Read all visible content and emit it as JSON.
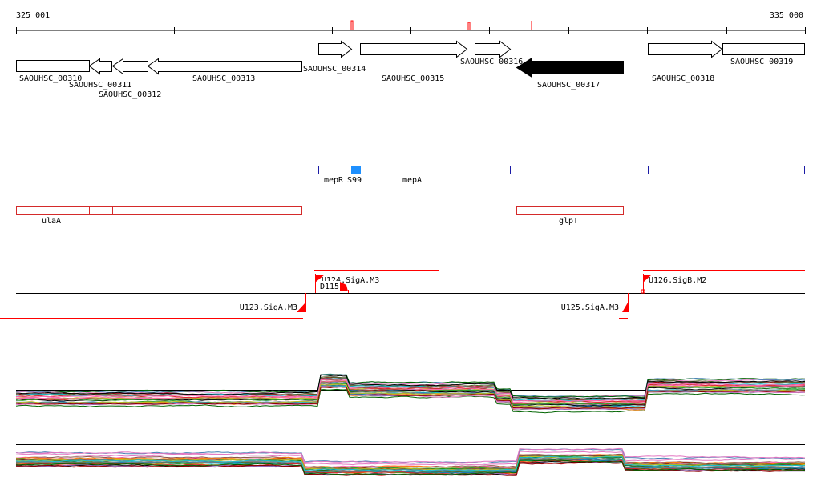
{
  "ruler": {
    "start_label": "325 001",
    "end_label": "335 000",
    "start": 325001,
    "end": 335000
  },
  "genes": [
    {
      "id": "SAOUHSC_00310",
      "label": "SAOUHSC_00310",
      "strand": "+",
      "fill": "white"
    },
    {
      "id": "SAOUHSC_00311",
      "label": "SAOUHSC_00311",
      "strand": "-",
      "fill": "white"
    },
    {
      "id": "SAOUHSC_00312",
      "label": "SAOUHSC_00312",
      "strand": "-",
      "fill": "white"
    },
    {
      "id": "SAOUHSC_00313",
      "label": "SAOUHSC_00313",
      "strand": "-",
      "fill": "white"
    },
    {
      "id": "SAOUHSC_00314",
      "label": "SAOUHSC_00314",
      "strand": "+",
      "fill": "white"
    },
    {
      "id": "SAOUHSC_00315",
      "label": "SAOUHSC_00315",
      "strand": "+",
      "fill": "white"
    },
    {
      "id": "SAOUHSC_00316",
      "label": "SAOUHSC_00316",
      "strand": "+",
      "fill": "white"
    },
    {
      "id": "SAOUHSC_00317",
      "label": "SAOUHSC_00317",
      "strand": "-",
      "fill": "black"
    },
    {
      "id": "SAOUHSC_00318",
      "label": "SAOUHSC_00318",
      "strand": "+",
      "fill": "white"
    },
    {
      "id": "SAOUHSC_00319",
      "label": "SAOUHSC_00319",
      "strand": "+",
      "fill": "white"
    }
  ],
  "blue_track": {
    "labels": [
      "mepR",
      "S99",
      "mepA"
    ],
    "color": "#1a1aa6",
    "highlight_color": "#1e90ff"
  },
  "red_track": {
    "labels": [
      "ulaA",
      "glpT"
    ],
    "color": "#d42a2a"
  },
  "transcripts": {
    "color": "#ff0000",
    "labels": [
      "U124.SigA.M3",
      "D115",
      "U123.SigA.M3",
      "U125.SigA.M3",
      "U126.SigB.M2"
    ]
  },
  "expression": {
    "panel_count": 2,
    "series_colors": [
      "#1f77b4",
      "#ff7f0e",
      "#2ca02c",
      "#d62728",
      "#9467bd",
      "#8c564b",
      "#e377c2",
      "#7f7f7f",
      "#bcbd22",
      "#17becf",
      "#8b0000",
      "#006400",
      "#000000",
      "#ff69b4",
      "#556b2f",
      "#4682b4"
    ]
  }
}
